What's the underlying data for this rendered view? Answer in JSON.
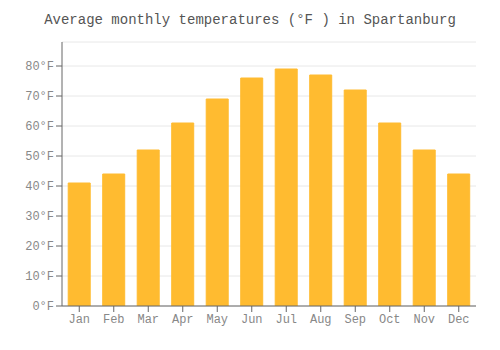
{
  "chart_data": {
    "type": "bar",
    "title": "Average monthly temperatures (°F ) in Spartanburg",
    "categories": [
      "Jan",
      "Feb",
      "Mar",
      "Apr",
      "May",
      "Jun",
      "Jul",
      "Aug",
      "Sep",
      "Oct",
      "Nov",
      "Dec"
    ],
    "values": [
      41,
      44,
      52,
      61,
      69,
      76,
      79,
      77,
      72,
      61,
      52,
      44
    ],
    "color": "#FFBB30",
    "ylim": [
      0,
      88
    ],
    "yticks": [
      {
        "value": 0,
        "label": "0°F"
      },
      {
        "value": 10,
        "label": "10°F"
      },
      {
        "value": 20,
        "label": "20°F"
      },
      {
        "value": 30,
        "label": "30°F"
      },
      {
        "value": 40,
        "label": "40°F"
      },
      {
        "value": 50,
        "label": "50°F"
      },
      {
        "value": 60,
        "label": "60°F"
      },
      {
        "value": 70,
        "label": "70°F"
      },
      {
        "value": 80,
        "label": "80°F"
      }
    ],
    "grid": true
  }
}
